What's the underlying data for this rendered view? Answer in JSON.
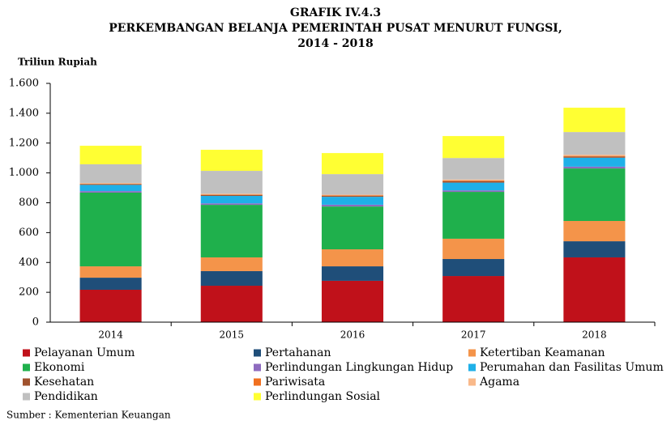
{
  "chart_data": {
    "type": "stacked_bar",
    "title_lines": [
      "GRAFIK IV.4.3",
      "PERKEMBANGAN BELANJA PEMERINTAH PUSAT MENURUT FUNGSI,",
      "2014 - 2018"
    ],
    "ylabel": "Triliun Rupiah",
    "source": "Sumber : Kementerian Keuangan",
    "categories": [
      "2014",
      "2015",
      "2016",
      "2017",
      "2018"
    ],
    "ylim": [
      0,
      1600
    ],
    "yticks": [
      0,
      200,
      400,
      600,
      800,
      {
        "value": 1000,
        "label": "1.000"
      },
      {
        "value": 1200,
        "label": "1.200"
      },
      {
        "value": 1400,
        "label": "1.400"
      },
      {
        "value": 1600,
        "label": "1.600"
      }
    ],
    "grid": false,
    "series": [
      {
        "name": "Pelayanan Umum",
        "color": "#c0111a",
        "values": [
          217,
          244,
          277,
          309,
          434
        ]
      },
      {
        "name": "Pertahanan",
        "color": "#1f4e79",
        "values": [
          81,
          98,
          97,
          114,
          108
        ]
      },
      {
        "name": "Ketertiban Keamanan",
        "color": "#f4944a",
        "values": [
          76,
          92,
          114,
          136,
          136
        ]
      },
      {
        "name": "Ekonomi",
        "color": "#1fb04c",
        "values": [
          494,
          352,
          287,
          314,
          352
        ]
      },
      {
        "name": "Perlindungan Lingkungan Hidup",
        "color": "#8e6bbf",
        "values": [
          10,
          10,
          12,
          10,
          12
        ]
      },
      {
        "name": "Perumahan dan Fasilitas Umum",
        "color": "#1fb0e8",
        "values": [
          42,
          50,
          53,
          52,
          60
        ]
      },
      {
        "name": "Kesehatan",
        "color": "#a0522d",
        "values": [
          5,
          7,
          6,
          10,
          8
        ]
      },
      {
        "name": "Pariwisata",
        "color": "#f07020",
        "values": [
          2,
          3,
          3,
          4,
          4
        ]
      },
      {
        "name": "Agama",
        "color": "#f9b98a",
        "values": [
          5,
          5,
          5,
          7,
          8
        ]
      },
      {
        "name": "Pendidikan",
        "color": "#c0c0c0",
        "values": [
          126,
          153,
          138,
          144,
          152
        ]
      },
      {
        "name": "Perlindungan Sosial",
        "color": "#ffff33",
        "values": [
          124,
          141,
          141,
          147,
          163
        ]
      }
    ]
  }
}
